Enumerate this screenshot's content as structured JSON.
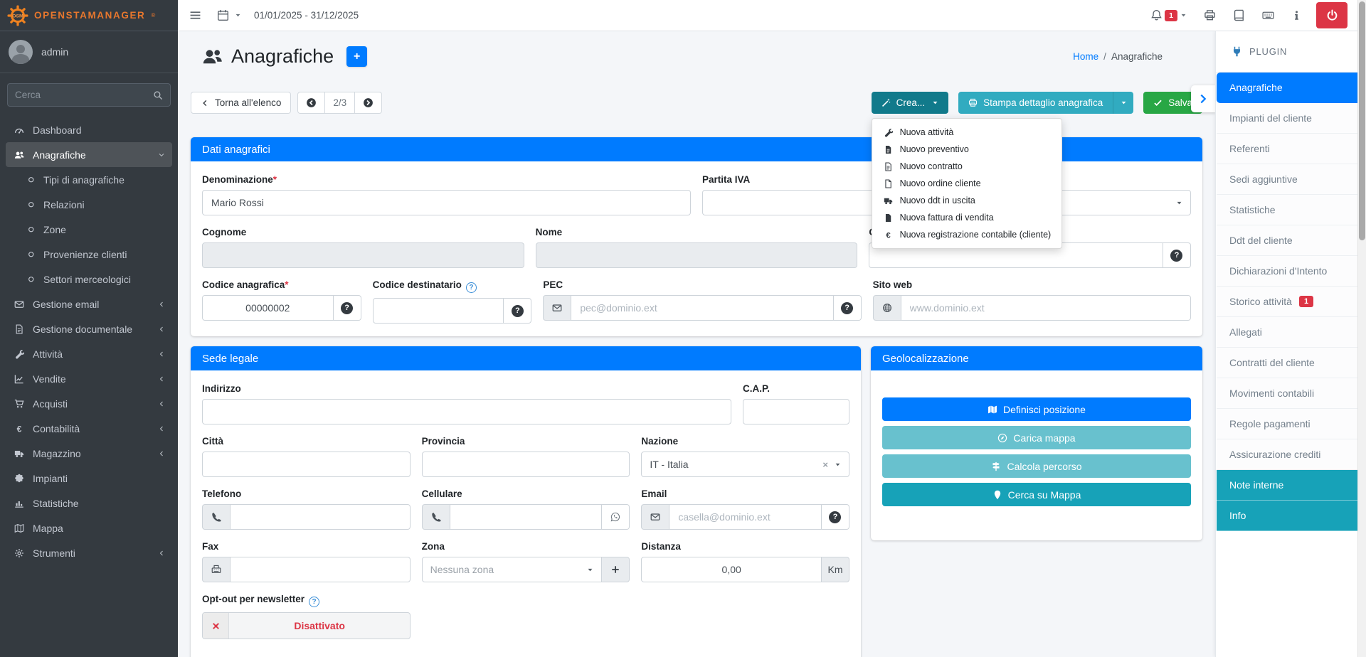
{
  "brand": {
    "logo": "OSM",
    "name": "OpenSTAManager",
    "reg": "®"
  },
  "topbar": {
    "date_range": "01/01/2025 - 31/12/2025",
    "notifications": "1"
  },
  "user": {
    "name": "admin"
  },
  "search": {
    "placeholder": "Cerca"
  },
  "nav": {
    "items": [
      {
        "label": "Dashboard"
      },
      {
        "label": "Anagrafiche"
      },
      {
        "label": "Tipi di anagrafiche"
      },
      {
        "label": "Relazioni"
      },
      {
        "label": "Zone"
      },
      {
        "label": "Provenienze clienti"
      },
      {
        "label": "Settori merceologici"
      },
      {
        "label": "Gestione email"
      },
      {
        "label": "Gestione documentale"
      },
      {
        "label": "Attività"
      },
      {
        "label": "Vendite"
      },
      {
        "label": "Acquisti"
      },
      {
        "label": "Contabilità"
      },
      {
        "label": "Magazzino"
      },
      {
        "label": "Impianti"
      },
      {
        "label": "Statistiche"
      },
      {
        "label": "Mappa"
      },
      {
        "label": "Strumenti"
      }
    ]
  },
  "header": {
    "title": "Anagrafiche",
    "add": "+"
  },
  "breadcrumb": {
    "home": "Home",
    "sep": "/",
    "current": "Anagrafiche"
  },
  "toolbar": {
    "back": "Torna all'elenco",
    "pager": "2/3",
    "create": "Crea...",
    "print": "Stampa dettaglio anagrafica",
    "save": "Salva"
  },
  "create_menu": [
    "Nuova attività",
    "Nuovo preventivo",
    "Nuovo contratto",
    "Nuovo ordine cliente",
    "Nuovo ddt in uscita",
    "Nuova fattura di vendita",
    "Nuova registrazione contabile (cliente)"
  ],
  "dati": {
    "title": "Dati anagrafici",
    "denominazione": {
      "label": "Denominazione",
      "req": "*",
      "value": "Mario Rossi"
    },
    "partita_iva": {
      "label": "Partita IVA"
    },
    "cognome": {
      "label": "Cognome"
    },
    "nome": {
      "label": "Nome"
    },
    "codice_fiscale": {
      "label": "Codice fiscale"
    },
    "codice_anagrafica": {
      "label": "Codice anagrafica",
      "req": "*",
      "value": "00000002"
    },
    "codice_destinatario": {
      "label": "Codice destinatario"
    },
    "pec": {
      "label": "PEC",
      "placeholder": "pec@dominio.ext"
    },
    "sito_web": {
      "label": "Sito web",
      "placeholder": "www.dominio.ext"
    }
  },
  "sede": {
    "title": "Sede legale",
    "indirizzo": {
      "label": "Indirizzo"
    },
    "cap": {
      "label": "C.A.P."
    },
    "citta": {
      "label": "Città"
    },
    "provincia": {
      "label": "Provincia"
    },
    "nazione": {
      "label": "Nazione",
      "value": "IT - Italia"
    },
    "telefono": {
      "label": "Telefono"
    },
    "cellulare": {
      "label": "Cellulare"
    },
    "email": {
      "label": "Email",
      "placeholder": "casella@dominio.ext"
    },
    "fax": {
      "label": "Fax"
    },
    "zona": {
      "label": "Zona",
      "value": "Nessuna zona"
    },
    "distanza": {
      "label": "Distanza",
      "value": "0,00",
      "unit": "Km"
    },
    "optout": {
      "label": "Opt-out per newsletter",
      "state": "Disattivato"
    }
  },
  "geo": {
    "title": "Geolocalizzazione",
    "buttons": [
      "Definisci posizione",
      "Carica mappa",
      "Calcola percorso",
      "Cerca su Mappa"
    ],
    "button_colors": [
      "#007bff",
      "#68c1ce",
      "#68c1ce",
      "#17a2b8"
    ]
  },
  "plugins": {
    "header": "PLUGIN",
    "items": [
      {
        "label": "Anagrafiche"
      },
      {
        "label": "Impianti del cliente"
      },
      {
        "label": "Referenti"
      },
      {
        "label": "Sedi aggiuntive"
      },
      {
        "label": "Statistiche"
      },
      {
        "label": "Ddt del cliente"
      },
      {
        "label": "Dichiarazioni d'Intento"
      },
      {
        "label": "Storico attività",
        "badge": "1"
      },
      {
        "label": "Allegati"
      },
      {
        "label": "Contratti del cliente"
      },
      {
        "label": "Movimenti contabili"
      },
      {
        "label": "Regole pagamenti"
      },
      {
        "label": "Assicurazione crediti"
      },
      {
        "label": "Note interne"
      },
      {
        "label": "Info"
      }
    ]
  },
  "colors": {
    "primary": "#007bff",
    "teal": "#17a2b8",
    "teal_dark": "#117a8b",
    "green": "#28a745",
    "red": "#dc3545",
    "dark": "#343a40"
  }
}
